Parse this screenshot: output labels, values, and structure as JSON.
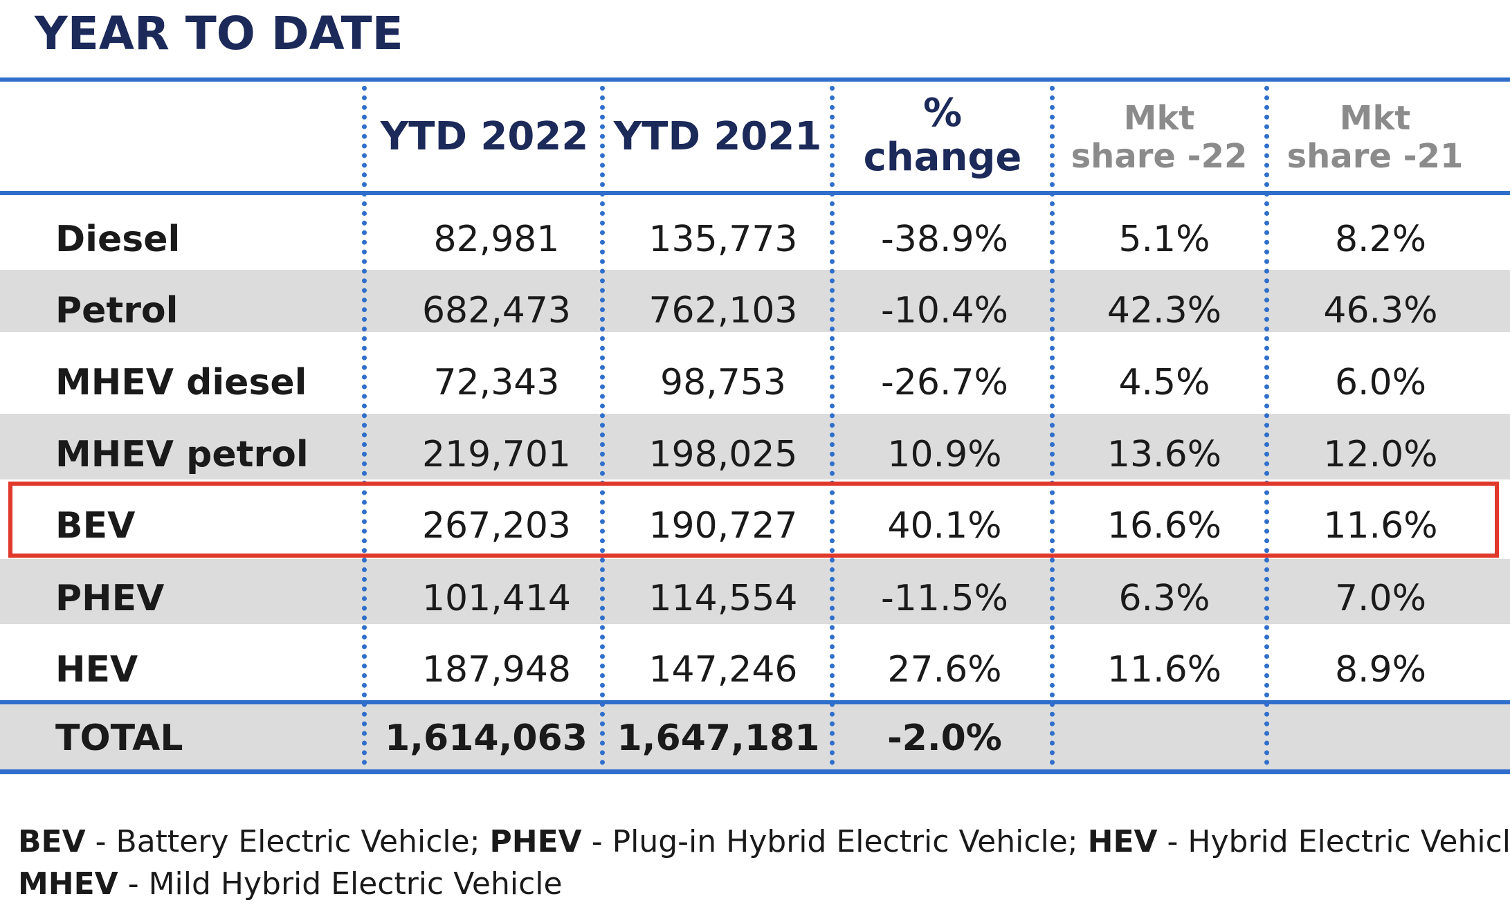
{
  "title": "YEAR TO DATE",
  "columns": {
    "ytd_2022": "YTD 2022",
    "ytd_2021": "YTD 2021",
    "pct_change_line1": "%",
    "pct_change_line2": "change",
    "mkt_share_22_line1": "Mkt",
    "mkt_share_22_line2": "share -22",
    "mkt_share_21_line1": "Mkt",
    "mkt_share_21_line2": "share -21"
  },
  "rows": [
    {
      "label": "Diesel",
      "ytd_2022": "82,981",
      "ytd_2021": "135,773",
      "pct_change": "-38.9%",
      "mkt_share_22": "5.1%",
      "mkt_share_21": "8.2%"
    },
    {
      "label": "Petrol",
      "ytd_2022": "682,473",
      "ytd_2021": "762,103",
      "pct_change": "-10.4%",
      "mkt_share_22": "42.3%",
      "mkt_share_21": "46.3%"
    },
    {
      "label": "MHEV diesel",
      "ytd_2022": "72,343",
      "ytd_2021": "98,753",
      "pct_change": "-26.7%",
      "mkt_share_22": "4.5%",
      "mkt_share_21": "6.0%"
    },
    {
      "label": "MHEV petrol",
      "ytd_2022": "219,701",
      "ytd_2021": "198,025",
      "pct_change": "10.9%",
      "mkt_share_22": "13.6%",
      "mkt_share_21": "12.0%"
    },
    {
      "label": "BEV",
      "ytd_2022": "267,203",
      "ytd_2021": "190,727",
      "pct_change": "40.1%",
      "mkt_share_22": "16.6%",
      "mkt_share_21": "11.6%"
    },
    {
      "label": "PHEV",
      "ytd_2022": "101,414",
      "ytd_2021": "114,554",
      "pct_change": "-11.5%",
      "mkt_share_22": "6.3%",
      "mkt_share_21": "7.0%"
    },
    {
      "label": "HEV",
      "ytd_2022": "187,948",
      "ytd_2021": "147,246",
      "pct_change": "27.6%",
      "mkt_share_22": "11.6%",
      "mkt_share_21": "8.9%"
    }
  ],
  "total": {
    "label": "TOTAL",
    "ytd_2022": "1,614,063",
    "ytd_2021": "1,647,181",
    "pct_change": "-2.0%"
  },
  "highlighted_row": "BEV",
  "footnote": {
    "bev_abbr": "BEV",
    "bev_text": " - Battery Electric Vehicle; ",
    "phev_abbr": "PHEV",
    "phev_text": " - Plug-in Hybrid Electric Vehicle; ",
    "hev_abbr": "HEV",
    "hev_text": " - Hybrid Electric Vehicle,",
    "mhev_abbr": "MHEV",
    "mhev_text": " - Mild Hybrid Electric Vehicle"
  },
  "colors": {
    "title": "#1c2a5a",
    "rule": "#2f6fcb",
    "band": "#dcdcdc",
    "highlight": "#e0392b",
    "muted_header": "#8b8b8b"
  }
}
